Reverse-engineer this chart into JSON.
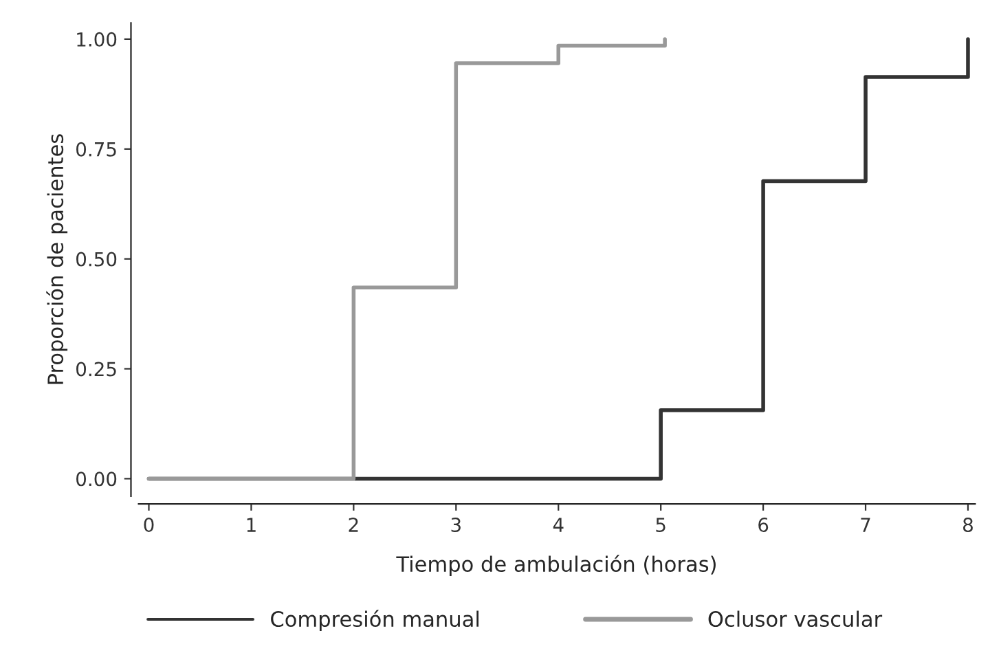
{
  "chart_data": {
    "type": "step",
    "xlabel": "Tiempo de ambulación (horas)",
    "ylabel": "Proporción de pacientes",
    "series": [
      {
        "name": "Compresión manual",
        "color": "#333333",
        "x": [
          0,
          5,
          6,
          7,
          8
        ],
        "values": [
          0,
          0.156,
          0.677,
          0.914,
          1.0
        ]
      },
      {
        "name": "Oclusor vascular",
        "color": "#999999",
        "x": [
          0,
          2,
          3,
          4,
          5.04
        ],
        "values": [
          0,
          0.435,
          0.945,
          0.985,
          1.0
        ]
      }
    ],
    "xlim": [
      -0.1,
      8.07
    ],
    "ylim": [
      -0.04,
      1.037
    ],
    "xticks": [
      0,
      1,
      2,
      3,
      4,
      5,
      6,
      7,
      8
    ],
    "yticks": [
      {
        "value": 0,
        "label": "0.00"
      },
      {
        "value": 0.25,
        "label": "0.25"
      },
      {
        "value": 0.5,
        "label": "0.50"
      },
      {
        "value": 0.75,
        "label": "0.75"
      },
      {
        "value": 1,
        "label": "1.00"
      }
    ],
    "legend": "bottom",
    "grid": false,
    "line_style": "solid"
  }
}
